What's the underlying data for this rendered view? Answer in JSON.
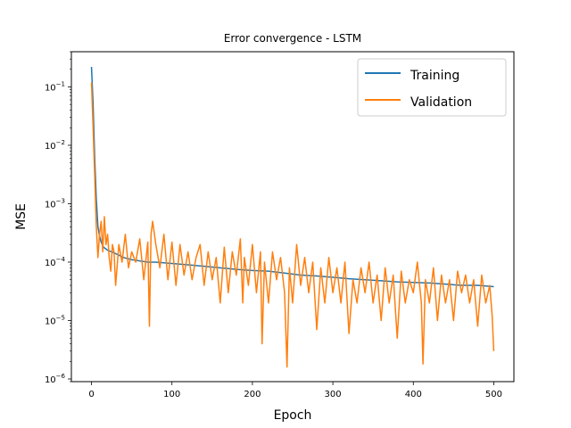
{
  "chart_data": {
    "type": "line",
    "title": "Error convergence - LSTM",
    "xlabel": "Epoch",
    "ylabel": "MSE",
    "xlim": [
      -25,
      525
    ],
    "ylim": [
      9e-07,
      0.4
    ],
    "yscale": "log",
    "grid": false,
    "legend_position": "top-right",
    "x_ticks": [
      0,
      100,
      200,
      300,
      400,
      500
    ],
    "x_tick_labels": [
      "0",
      "100",
      "200",
      "300",
      "400",
      "500"
    ],
    "y_ticks": [
      1e-06,
      1e-05,
      0.0001,
      0.001,
      0.01,
      0.1
    ],
    "y_tick_labels": [
      {
        "base": "10",
        "exp": "−6"
      },
      {
        "base": "10",
        "exp": "−5"
      },
      {
        "base": "10",
        "exp": "−4"
      },
      {
        "base": "10",
        "exp": "−3"
      },
      {
        "base": "10",
        "exp": "−2"
      },
      {
        "base": "10",
        "exp": "−1"
      }
    ],
    "series": [
      {
        "name": "Training",
        "color": "#1f77b4",
        "points": [
          [
            0,
            0.22
          ],
          [
            2,
            0.05
          ],
          [
            4,
            0.006
          ],
          [
            6,
            0.0012
          ],
          [
            8,
            0.0004
          ],
          [
            10,
            0.00028
          ],
          [
            12,
            0.00022
          ],
          [
            15,
            0.00018
          ],
          [
            20,
            0.00016
          ],
          [
            25,
            0.00015
          ],
          [
            30,
            0.00014
          ],
          [
            40,
            0.00012
          ],
          [
            50,
            0.00011
          ],
          [
            60,
            0.000105
          ],
          [
            70,
            0.0001
          ],
          [
            80,
            0.0001
          ],
          [
            100,
            9.5e-05
          ],
          [
            120,
            9e-05
          ],
          [
            140,
            8.5e-05
          ],
          [
            160,
            8e-05
          ],
          [
            180,
            7.5e-05
          ],
          [
            200,
            7.2e-05
          ],
          [
            220,
            7e-05
          ],
          [
            240,
            6.5e-05
          ],
          [
            260,
            6e-05
          ],
          [
            280,
            5.8e-05
          ],
          [
            300,
            5.5e-05
          ],
          [
            320,
            5.2e-05
          ],
          [
            340,
            5e-05
          ],
          [
            360,
            4.8e-05
          ],
          [
            380,
            4.6e-05
          ],
          [
            400,
            4.5e-05
          ],
          [
            420,
            4.4e-05
          ],
          [
            440,
            4.2e-05
          ],
          [
            460,
            4e-05
          ],
          [
            480,
            4e-05
          ],
          [
            500,
            3.8e-05
          ]
        ]
      },
      {
        "name": "Validation",
        "color": "#ff7f0e",
        "points": [
          [
            0,
            0.12
          ],
          [
            2,
            0.02
          ],
          [
            4,
            0.003
          ],
          [
            6,
            0.0004
          ],
          [
            8,
            0.00012
          ],
          [
            10,
            0.0003
          ],
          [
            12,
            0.0005
          ],
          [
            14,
            0.00015
          ],
          [
            16,
            0.0006
          ],
          [
            18,
            0.0002
          ],
          [
            20,
            0.0003
          ],
          [
            22,
            0.00012
          ],
          [
            24,
            7e-05
          ],
          [
            26,
            0.0002
          ],
          [
            28,
            0.00015
          ],
          [
            30,
            4e-05
          ],
          [
            34,
            0.0002
          ],
          [
            38,
            0.0001
          ],
          [
            42,
            0.0003
          ],
          [
            46,
            8e-05
          ],
          [
            50,
            0.00015
          ],
          [
            55,
            0.0001
          ],
          [
            60,
            0.00025
          ],
          [
            65,
            5e-05
          ],
          [
            70,
            0.00022
          ],
          [
            72,
            8e-06
          ],
          [
            74,
            0.0003
          ],
          [
            76,
            0.0005
          ],
          [
            80,
            0.0002
          ],
          [
            85,
            8e-05
          ],
          [
            90,
            0.0003
          ],
          [
            95,
            5e-05
          ],
          [
            100,
            0.00022
          ],
          [
            105,
            4e-05
          ],
          [
            110,
            0.0002
          ],
          [
            115,
            6e-05
          ],
          [
            120,
            0.00015
          ],
          [
            125,
            5e-05
          ],
          [
            130,
            0.00012
          ],
          [
            135,
            0.0002
          ],
          [
            140,
            4e-05
          ],
          [
            145,
            0.00015
          ],
          [
            150,
            5e-05
          ],
          [
            155,
            0.00012
          ],
          [
            160,
            2e-05
          ],
          [
            165,
            0.00018
          ],
          [
            170,
            3e-05
          ],
          [
            175,
            0.00015
          ],
          [
            180,
            6e-05
          ],
          [
            185,
            0.00025
          ],
          [
            188,
            2e-05
          ],
          [
            190,
            0.00012
          ],
          [
            195,
            4e-05
          ],
          [
            200,
            0.0002
          ],
          [
            205,
            3e-05
          ],
          [
            210,
            0.00015
          ],
          [
            212,
            4e-06
          ],
          [
            215,
            0.0001
          ],
          [
            220,
            2e-05
          ],
          [
            225,
            0.00015
          ],
          [
            230,
            5e-05
          ],
          [
            235,
            0.00012
          ],
          [
            240,
            3e-05
          ],
          [
            243,
            1.6e-06
          ],
          [
            246,
            8e-05
          ],
          [
            250,
            2e-05
          ],
          [
            255,
            0.0002
          ],
          [
            260,
            4e-05
          ],
          [
            265,
            0.00012
          ],
          [
            270,
            3e-05
          ],
          [
            275,
            0.0001
          ],
          [
            280,
            7e-06
          ],
          [
            285,
            8e-05
          ],
          [
            290,
            2e-05
          ],
          [
            295,
            0.00012
          ],
          [
            300,
            3e-05
          ],
          [
            305,
            8e-05
          ],
          [
            310,
            2e-05
          ],
          [
            315,
            0.0001
          ],
          [
            320,
            6e-06
          ],
          [
            325,
            5e-05
          ],
          [
            330,
            2e-05
          ],
          [
            335,
            8e-05
          ],
          [
            340,
            3e-05
          ],
          [
            345,
            0.0001
          ],
          [
            350,
            2e-05
          ],
          [
            355,
            6e-05
          ],
          [
            360,
            1e-05
          ],
          [
            365,
            8e-05
          ],
          [
            370,
            2e-05
          ],
          [
            375,
            6e-05
          ],
          [
            380,
            5e-06
          ],
          [
            385,
            7e-05
          ],
          [
            390,
            2e-05
          ],
          [
            395,
            5e-05
          ],
          [
            400,
            3e-05
          ],
          [
            405,
            0.0001
          ],
          [
            410,
            2e-05
          ],
          [
            412,
            1.8e-06
          ],
          [
            415,
            5e-05
          ],
          [
            420,
            2e-05
          ],
          [
            425,
            8e-05
          ],
          [
            430,
            1e-05
          ],
          [
            435,
            6e-05
          ],
          [
            440,
            2e-05
          ],
          [
            445,
            5e-05
          ],
          [
            450,
            1e-05
          ],
          [
            455,
            7e-05
          ],
          [
            460,
            3e-05
          ],
          [
            465,
            6e-05
          ],
          [
            470,
            2e-05
          ],
          [
            475,
            5e-05
          ],
          [
            480,
            8e-06
          ],
          [
            485,
            6e-05
          ],
          [
            490,
            2e-05
          ],
          [
            495,
            4e-05
          ],
          [
            498,
            1.2e-05
          ],
          [
            500,
            3e-06
          ]
        ]
      }
    ]
  }
}
